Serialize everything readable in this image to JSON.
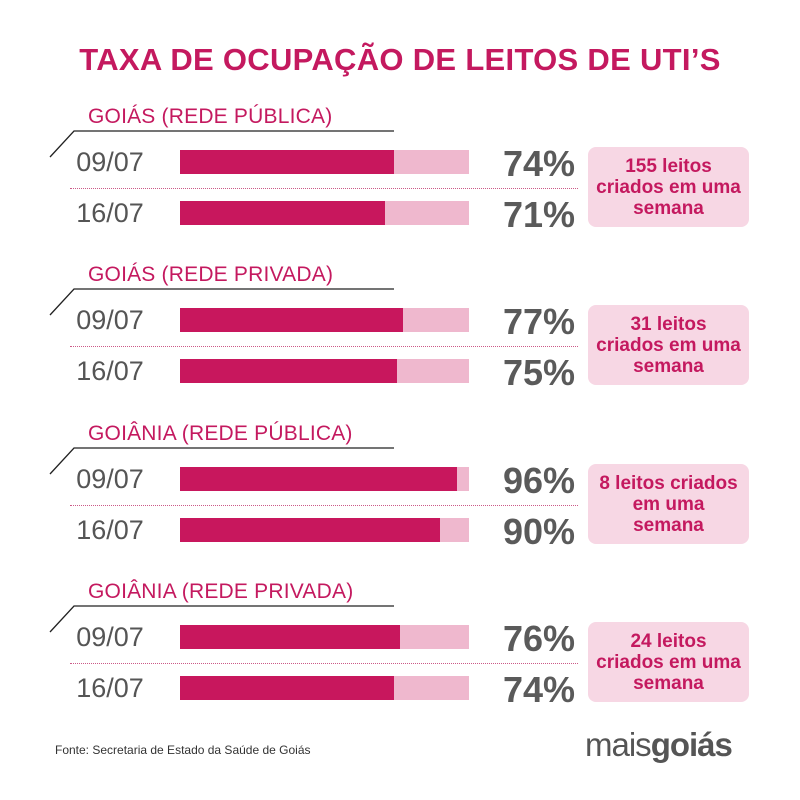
{
  "title": "TAXA DE OCUPAÇÃO DE LEITOS DE UTI’S",
  "colors": {
    "accent": "#c4195f",
    "bar": "#c8175d",
    "track": "#efb8ce",
    "note_bg": "#f7d7e4",
    "text_gray": "#555555"
  },
  "chart_data": {
    "type": "bar",
    "title": "TAXA DE OCUPAÇÃO DE LEITOS DE UTI’S",
    "orientation": "horizontal",
    "unit": "%",
    "ylim": [
      0,
      100
    ],
    "groups": [
      {
        "label": "GOIÁS (REDE PÚBLICA)",
        "note": "155 leitos criados em uma semana",
        "rows": [
          {
            "date": "09/07",
            "value": 74,
            "label": "74%"
          },
          {
            "date": "16/07",
            "value": 71,
            "label": "71%"
          }
        ]
      },
      {
        "label": "GOIÁS (REDE PRIVADA)",
        "note": "31 leitos criados em uma semana",
        "rows": [
          {
            "date": "09/07",
            "value": 77,
            "label": "77%"
          },
          {
            "date": "16/07",
            "value": 75,
            "label": "75%"
          }
        ]
      },
      {
        "label": "GOIÂNIA (REDE PÚBLICA)",
        "note": "8 leitos criados em uma semana",
        "rows": [
          {
            "date": "09/07",
            "value": 96,
            "label": "96%"
          },
          {
            "date": "16/07",
            "value": 90,
            "label": "90%"
          }
        ]
      },
      {
        "label": "GOIÂNIA (REDE PRIVADA)",
        "note": "24 leitos criados em uma semana",
        "rows": [
          {
            "date": "09/07",
            "value": 76,
            "label": "76%"
          },
          {
            "date": "16/07",
            "value": 74,
            "label": "74%"
          }
        ]
      }
    ]
  },
  "footer": {
    "source": "Fonte: Secretaria de Estado da Saúde de Goiás",
    "logo_part1": "mais",
    "logo_part2": "goiás"
  }
}
